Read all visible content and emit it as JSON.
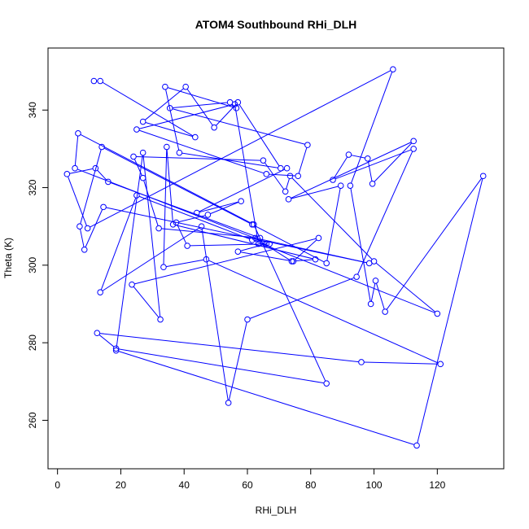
{
  "chart_data": {
    "type": "line",
    "title": "ATOM4 Southbound RHi_DLH",
    "xlabel": "RHi_DLH",
    "ylabel": "Theta (K)",
    "xlim": [
      -3,
      141
    ],
    "ylim": [
      247.5,
      356
    ],
    "x_ticks": [
      0,
      20,
      40,
      60,
      80,
      100,
      120
    ],
    "y_ticks": [
      260,
      280,
      300,
      320,
      340
    ],
    "markers": "open-circle",
    "grid": false,
    "legend": "none",
    "color": "#0000ff",
    "x": [
      11.5,
      13.5,
      43.5,
      27,
      40.5,
      49.5,
      57,
      70.5,
      38.5,
      34,
      56.5,
      54.5,
      35.5,
      79,
      76,
      66,
      25,
      56,
      63.5,
      66,
      57,
      74.5,
      82.5,
      23.5,
      32.5,
      27,
      18.5,
      113.5,
      134.5,
      103.5,
      100.5,
      99,
      92.5,
      106,
      9.5,
      3,
      12,
      16,
      64,
      32,
      27,
      24,
      65,
      72,
      73.5,
      100,
      120,
      61.5,
      25,
      13.5,
      45.5,
      54,
      60,
      94.5,
      112.5,
      87,
      92,
      98,
      99.5,
      112.5,
      73,
      89.5,
      85,
      61.5,
      14,
      7,
      8.5,
      14.5,
      98.5,
      62.5,
      74,
      81.5,
      36.5,
      34.5,
      33.5,
      47,
      121,
      96,
      12.5,
      18.5,
      85,
      62,
      6.5,
      5.5,
      67,
      41,
      37.5,
      47.5,
      58,
      44,
      72.5
    ],
    "y": [
      347.5,
      347.5,
      333,
      337,
      346,
      335.5,
      342,
      325,
      329,
      346,
      340.5,
      342,
      340.5,
      331,
      323,
      323.5,
      335,
      341.5,
      305.5,
      305.5,
      303.5,
      301,
      307,
      295,
      286,
      329,
      278,
      253.5,
      323,
      288,
      296,
      290,
      320.5,
      350.5,
      309.5,
      323.5,
      325,
      321.5,
      307,
      309.5,
      322.5,
      328,
      327,
      319,
      323,
      301,
      287.5,
      306.5,
      318,
      293,
      310,
      264.5,
      286,
      297,
      330,
      322,
      328.5,
      327.5,
      321,
      332,
      317,
      320.5,
      300.5,
      310.5,
      330.5,
      310,
      304,
      315,
      300.5,
      307,
      301,
      301.5,
      310.5,
      330.5,
      299.5,
      301.5,
      274.5,
      275,
      282.5,
      278.5,
      269.5,
      310.5,
      334,
      325,
      305.5,
      305,
      311,
      313,
      316.5,
      313.5,
      325
    ]
  }
}
